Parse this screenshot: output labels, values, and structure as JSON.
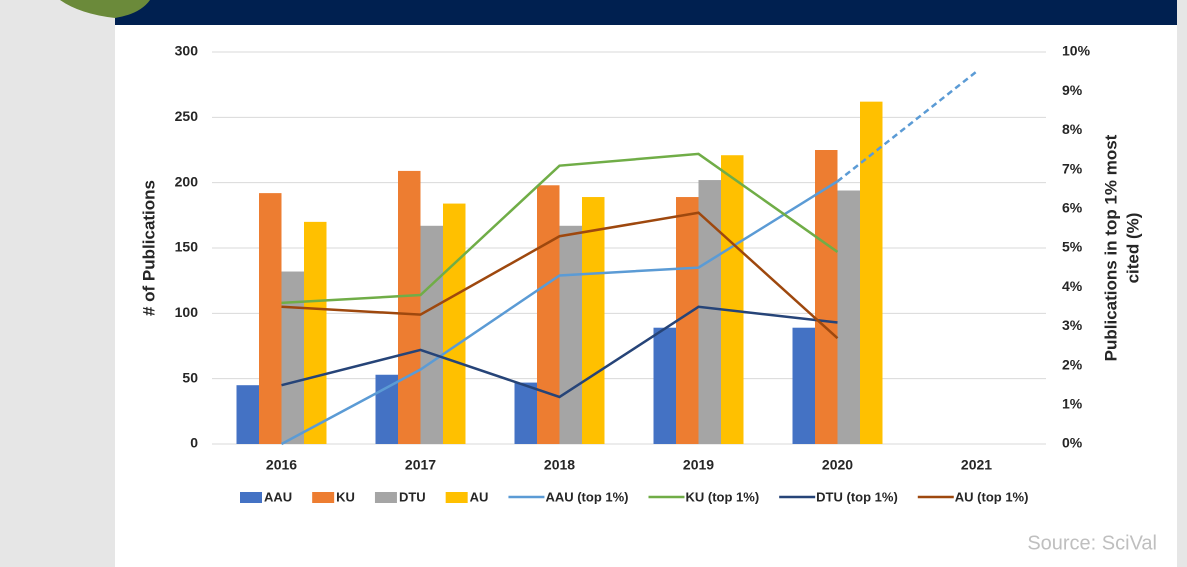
{
  "chart_data": {
    "type": "bar",
    "categories": [
      "2016",
      "2017",
      "2018",
      "2019",
      "2020",
      "2021"
    ],
    "ylabel": "# of Publications",
    "y2label": [
      "Publications in top 1% most",
      "cited (%)"
    ],
    "ylim": [
      0,
      300
    ],
    "yticks": [
      0,
      50,
      100,
      150,
      200,
      250,
      300
    ],
    "y2lim": [
      0,
      10
    ],
    "y2ticks": [
      {
        "value": 0,
        "label": "0%"
      },
      {
        "value": 1,
        "label": "1%"
      },
      {
        "value": 2,
        "label": "2%"
      },
      {
        "value": 3,
        "label": "3%"
      },
      {
        "value": 4,
        "label": "4%"
      },
      {
        "value": 5,
        "label": "5%"
      },
      {
        "value": 6,
        "label": "6%"
      },
      {
        "value": 7,
        "label": "7%"
      },
      {
        "value": 8,
        "label": "8%"
      },
      {
        "value": 9,
        "label": "9%"
      },
      {
        "value": 10,
        "label": "10%"
      }
    ],
    "grid": true,
    "series": [
      {
        "name": "AAU",
        "type": "bar",
        "color": "#4472c4",
        "values": [
          45,
          53,
          47,
          89,
          89,
          null
        ]
      },
      {
        "name": "KU",
        "type": "bar",
        "color": "#ed7d31",
        "values": [
          192,
          209,
          198,
          189,
          225,
          null
        ]
      },
      {
        "name": "DTU",
        "type": "bar",
        "color": "#a5a5a5",
        "values": [
          132,
          167,
          167,
          202,
          194,
          null
        ]
      },
      {
        "name": "AU",
        "type": "bar",
        "color": "#ffc000",
        "values": [
          170,
          184,
          189,
          221,
          262,
          null
        ]
      },
      {
        "name": "AAU (top 1%)",
        "type": "line",
        "axis": "y2",
        "color": "#5b9bd5",
        "dash_from_index": 4,
        "values": [
          0,
          1.9,
          4.3,
          4.5,
          6.7,
          9.5
        ]
      },
      {
        "name": "KU (top 1%)",
        "type": "line",
        "axis": "y2",
        "color": "#70ad47",
        "values": [
          3.6,
          3.8,
          7.1,
          7.4,
          4.9,
          null
        ]
      },
      {
        "name": "DTU (top 1%)",
        "type": "line",
        "axis": "y2",
        "color": "#264478",
        "values": [
          1.5,
          2.4,
          1.2,
          3.5,
          3.1,
          null
        ]
      },
      {
        "name": "AU (top 1%)",
        "type": "line",
        "axis": "y2",
        "color": "#9e480e",
        "values": [
          3.5,
          3.3,
          5.3,
          5.9,
          2.7,
          null
        ]
      }
    ]
  },
  "footer": {
    "source": "Source: SciVal"
  }
}
